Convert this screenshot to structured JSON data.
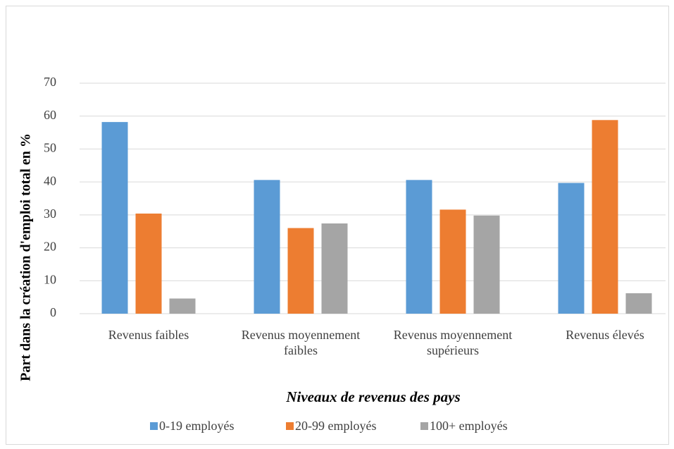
{
  "chart_data": {
    "type": "bar",
    "categories": [
      "Revenus faibles",
      "Revenus moyennement faibles",
      "Revenus moyennement supérieurs",
      "Revenus élevés"
    ],
    "series": [
      {
        "name": "0-19 employés",
        "color": "#5b9bd5",
        "values": [
          58.2,
          40.6,
          40.6,
          39.7
        ]
      },
      {
        "name": "20-99 employés",
        "color": "#ed7d31",
        "values": [
          30.4,
          26.0,
          31.6,
          58.8
        ]
      },
      {
        "name": "100+ employés",
        "color": "#a5a5a5",
        "values": [
          4.6,
          27.4,
          29.8,
          6.2
        ]
      }
    ],
    "x_label": "Niveaux de revenus des pays",
    "y_label": "Part dans la création d'emploi total en %",
    "ylim": [
      0,
      70
    ],
    "yticks": [
      0,
      10,
      20,
      30,
      40,
      50,
      60,
      70
    ],
    "grid": true,
    "legend": "bottom"
  }
}
